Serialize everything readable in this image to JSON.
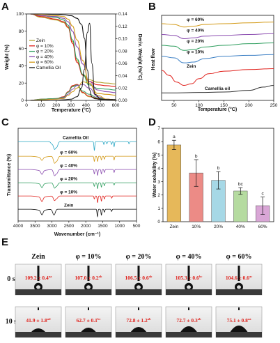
{
  "panels": {
    "A": {
      "letter": "A",
      "xlabel": "Temperature (°C)",
      "ylabel_left": "Weight (%)",
      "ylabel_right": "Deriv. Weight (%/°C)",
      "x_ticks": [
        "0",
        "100",
        "200",
        "300",
        "400",
        "500",
        "600"
      ],
      "y_left_ticks": [
        "0",
        "20",
        "40",
        "60",
        "80",
        "100"
      ],
      "y_right_ticks": [
        "0.00",
        "0.02",
        "0.04",
        "0.06",
        "0.08",
        "0.10",
        "0.12",
        "0.14"
      ],
      "legend": [
        "Zein",
        "φ = 10%",
        "φ = 20%",
        "φ = 40%",
        "φ = 60%",
        "Camellia Oil"
      ]
    },
    "B": {
      "letter": "B",
      "xlabel": "Temperature (°C)",
      "ylabel": "Heat flow",
      "x_ticks": [
        "50",
        "100",
        "150",
        "200",
        "250"
      ],
      "curve_labels": [
        "φ = 60%",
        "φ = 40%",
        "φ = 20%",
        "φ = 10%",
        "Zein",
        "Camellia oil"
      ]
    },
    "C": {
      "letter": "C",
      "xlabel": "Wavenumber (cm⁻¹)",
      "ylabel": "Transmittance (%)",
      "x_ticks": [
        "4000",
        "3500",
        "3000",
        "2500",
        "2000",
        "1500",
        "1000",
        "500"
      ],
      "curve_labels": [
        "Camellia Oil",
        "φ = 60%",
        "φ = 40%",
        "φ = 20%",
        "φ = 10%",
        "Zein"
      ]
    },
    "D": {
      "letter": "D",
      "ylabel": "Water solubility (%)",
      "y_ticks": [
        "0",
        "1",
        "2",
        "3",
        "4",
        "5",
        "6",
        "7"
      ]
    },
    "E": {
      "letter": "E",
      "headers": [
        "Zein",
        "φ = 10%",
        "φ = 20%",
        "φ = 40%",
        "φ = 60%"
      ],
      "row_labels": [
        "0 s",
        "10 s"
      ],
      "values_0s": [
        "109.2 ± 0.4",
        "107.0 ± 0.2",
        "106.5 ± 0.6",
        "105.3 ± 0.6",
        "104.6 ± 0.6"
      ],
      "sup_0s": [
        "aa",
        "ab",
        "ab",
        "bc",
        "ac"
      ],
      "values_10s": [
        "41.9 ± 1.8",
        "62.7 ± 0.1",
        "72.8 ± 1.2",
        "72.7 ± 0.3",
        "75.1 ± 0.8"
      ],
      "sup_10s": [
        "ad",
        "bc",
        "ab",
        "ab",
        "aa"
      ]
    }
  },
  "colors": {
    "zein": "#b5a532",
    "phi10": "#e0201b",
    "phi20": "#2e9e5e",
    "phi40": "#8b4db0",
    "phi60": "#d39a17",
    "oil": "#111111",
    "oilB": "#333333",
    "oilC": "#2aa7c4",
    "zeinB": "#e0201b",
    "zeinC": "#111111",
    "phi10B": "#3b7fc4",
    "phi10C": "#e0201b",
    "phi20B": "#2e9e5e",
    "phi20C": "#2e9e5e"
  },
  "chart_data": [
    {
      "panel": "A",
      "type": "line",
      "title": "",
      "xlabel": "Temperature (°C)",
      "ylabel": "Weight (%)",
      "y2label": "Deriv. Weight (%/°C)",
      "xlim": [
        0,
        600
      ],
      "ylim": [
        0,
        100
      ],
      "y2lim": [
        0,
        0.14
      ],
      "series": [
        {
          "name": "Zein",
          "color": "#b5a532",
          "x": [
            25,
            100,
            200,
            250,
            280,
            310,
            340,
            380,
            420,
            480,
            540,
            600
          ],
          "y": [
            100,
            96,
            93,
            90,
            84,
            68,
            46,
            30,
            24,
            21,
            20,
            19
          ],
          "deriv_y": [
            0.0,
            0.002,
            0.003,
            0.006,
            0.014,
            0.023,
            0.025,
            0.012,
            0.006,
            0.003,
            0.002,
            0.001
          ]
        },
        {
          "name": "φ = 10%",
          "color": "#e0201b",
          "x": [
            25,
            100,
            200,
            250,
            280,
            310,
            340,
            380,
            420,
            480,
            540,
            600
          ],
          "y": [
            100,
            97,
            94,
            91,
            85,
            66,
            44,
            29,
            22,
            18,
            17,
            16
          ],
          "deriv_y": [
            0.0,
            0.002,
            0.003,
            0.006,
            0.014,
            0.024,
            0.026,
            0.013,
            0.007,
            0.003,
            0.002,
            0.001
          ]
        },
        {
          "name": "φ = 20%",
          "color": "#2e9e5e",
          "x": [
            25,
            100,
            200,
            250,
            280,
            310,
            340,
            380,
            420,
            480,
            540,
            600
          ],
          "y": [
            100,
            98,
            96,
            93,
            87,
            70,
            48,
            30,
            18,
            14,
            13,
            12
          ],
          "deriv_y": [
            0.0,
            0.002,
            0.003,
            0.005,
            0.013,
            0.022,
            0.025,
            0.015,
            0.01,
            0.004,
            0.002,
            0.001
          ]
        },
        {
          "name": "φ = 40%",
          "color": "#8b4db0",
          "x": [
            25,
            100,
            200,
            250,
            280,
            310,
            340,
            380,
            420,
            480,
            540,
            600
          ],
          "y": [
            100,
            98,
            97,
            95,
            91,
            80,
            62,
            42,
            22,
            12,
            10,
            9
          ],
          "deriv_y": [
            0.0,
            0.001,
            0.002,
            0.004,
            0.01,
            0.018,
            0.024,
            0.026,
            0.02,
            0.006,
            0.002,
            0.001
          ]
        },
        {
          "name": "φ = 60%",
          "color": "#d39a17",
          "x": [
            25,
            100,
            200,
            250,
            280,
            310,
            340,
            380,
            420,
            480,
            540,
            600
          ],
          "y": [
            100,
            99,
            98,
            97,
            94,
            86,
            70,
            46,
            20,
            8,
            7,
            6
          ],
          "deriv_y": [
            0.0,
            0.001,
            0.002,
            0.003,
            0.008,
            0.014,
            0.02,
            0.03,
            0.028,
            0.008,
            0.002,
            0.001
          ]
        },
        {
          "name": "Camellia Oil",
          "color": "#111111",
          "x": [
            25,
            100,
            200,
            250,
            300,
            340,
            370,
            390,
            410,
            425,
            440,
            460,
            500,
            600
          ],
          "y": [
            100,
            100,
            99.5,
            99,
            98,
            95,
            88,
            72,
            35,
            12,
            4,
            2,
            1,
            1
          ],
          "deriv_y": [
            0.0,
            0.0,
            0.0,
            0.001,
            0.002,
            0.006,
            0.02,
            0.05,
            0.11,
            0.125,
            0.06,
            0.01,
            0.002,
            0.0
          ]
        }
      ]
    },
    {
      "panel": "B",
      "type": "line",
      "title": "",
      "xlabel": "Temperature (°C)",
      "ylabel": "Heat flow",
      "xlim": [
        25,
        250
      ],
      "series": [
        {
          "name": "φ = 60%",
          "color": "#d39a17",
          "x": [
            25,
            50,
            70,
            90,
            110,
            150,
            200,
            250
          ],
          "y": [
            9.2,
            9.1,
            8.8,
            8.9,
            9.1,
            9.2,
            9.3,
            9.4
          ]
        },
        {
          "name": "φ = 40%",
          "color": "#8b4db0",
          "x": [
            25,
            50,
            70,
            90,
            110,
            150,
            200,
            250
          ],
          "y": [
            7.9,
            7.8,
            7.4,
            7.5,
            7.7,
            7.8,
            7.9,
            8.0
          ]
        },
        {
          "name": "φ = 20%",
          "color": "#2e9e5e",
          "x": [
            25,
            50,
            70,
            90,
            110,
            150,
            200,
            250
          ],
          "y": [
            6.6,
            6.5,
            6.0,
            6.1,
            6.4,
            6.6,
            6.8,
            6.9
          ]
        },
        {
          "name": "φ = 10%",
          "color": "#3b7fc4",
          "x": [
            25,
            50,
            70,
            90,
            110,
            150,
            200,
            250
          ],
          "y": [
            5.3,
            5.1,
            4.5,
            4.6,
            5.0,
            5.3,
            5.4,
            5.5
          ]
        },
        {
          "name": "Zein",
          "color": "#e0201b",
          "x": [
            25,
            40,
            55,
            70,
            85,
            100,
            120,
            150,
            200,
            250
          ],
          "y": [
            3.6,
            3.0,
            2.2,
            1.8,
            2.0,
            2.6,
            3.2,
            3.5,
            3.7,
            3.8
          ]
        },
        {
          "name": "Camellia oil",
          "color": "#333333",
          "x": [
            25,
            50,
            100,
            150,
            200,
            230,
            250
          ],
          "y": [
            0.9,
            0.9,
            0.95,
            1.0,
            1.2,
            1.6,
            1.8
          ]
        }
      ]
    },
    {
      "panel": "C",
      "type": "line",
      "title": "",
      "xlabel": "Wavenumber (cm⁻¹)",
      "ylabel": "Transmittance (%)",
      "xlim": [
        4000,
        500
      ],
      "series": [
        {
          "name": "Camellia Oil",
          "color": "#2aa7c4",
          "base": 5.4,
          "dips": [
            [
              3005,
              0.15
            ],
            [
              2925,
              0.5
            ],
            [
              2854,
              0.35
            ],
            [
              1746,
              0.6
            ],
            [
              1465,
              0.2
            ],
            [
              1377,
              0.15
            ],
            [
              1237,
              0.2
            ],
            [
              1163,
              0.35
            ],
            [
              722,
              0.15
            ]
          ]
        },
        {
          "name": "φ = 60%",
          "color": "#d39a17",
          "base": 4.4,
          "dips": [
            [
              3295,
              0.2
            ],
            [
              2925,
              0.45
            ],
            [
              2854,
              0.3
            ],
            [
              1746,
              0.35
            ],
            [
              1651,
              0.35
            ],
            [
              1538,
              0.25
            ],
            [
              1449,
              0.2
            ],
            [
              1163,
              0.25
            ]
          ]
        },
        {
          "name": "φ = 40%",
          "color": "#8b4db0",
          "base": 3.5,
          "dips": [
            [
              3295,
              0.25
            ],
            [
              2925,
              0.4
            ],
            [
              2854,
              0.25
            ],
            [
              1746,
              0.3
            ],
            [
              1651,
              0.4
            ],
            [
              1538,
              0.3
            ],
            [
              1449,
              0.2
            ],
            [
              1163,
              0.2
            ]
          ]
        },
        {
          "name": "φ = 20%",
          "color": "#2e9e5e",
          "base": 2.6,
          "dips": [
            [
              3295,
              0.25
            ],
            [
              2925,
              0.35
            ],
            [
              2854,
              0.2
            ],
            [
              1747,
              0.25
            ],
            [
              1651,
              0.4
            ],
            [
              1538,
              0.3
            ],
            [
              1449,
              0.2
            ],
            [
              1163,
              0.15
            ]
          ]
        },
        {
          "name": "φ = 10%",
          "color": "#e0201b",
          "base": 1.7,
          "dips": [
            [
              3295,
              0.3
            ],
            [
              2925,
              0.3
            ],
            [
              2854,
              0.15
            ],
            [
              1746,
              0.2
            ],
            [
              1651,
              0.45
            ],
            [
              1538,
              0.35
            ],
            [
              1449,
              0.2
            ],
            [
              1233,
              0.15
            ]
          ]
        },
        {
          "name": "Zein",
          "color": "#111111",
          "base": 0.8,
          "dips": [
            [
              3295,
              0.3
            ],
            [
              2959,
              0.2
            ],
            [
              2925,
              0.25
            ],
            [
              1655,
              0.5
            ],
            [
              1538,
              0.4
            ],
            [
              1449,
              0.2
            ],
            [
              1237,
              0.15
            ]
          ]
        }
      ]
    },
    {
      "panel": "D",
      "type": "bar",
      "title": "",
      "xlabel": "",
      "ylabel": "Water solubility (%)",
      "ylim": [
        0,
        7
      ],
      "categories": [
        "Zein",
        "10%",
        "20%",
        "40%",
        "60%"
      ],
      "values": [
        5.75,
        3.65,
        3.1,
        2.3,
        1.2
      ],
      "errors": [
        0.35,
        1.0,
        0.65,
        0.25,
        0.65
      ],
      "significance": [
        "a",
        "b",
        "b",
        "bc",
        "c"
      ],
      "colors": [
        "#e6b85a",
        "#ec8b86",
        "#a6d8e6",
        "#b5dba0",
        "#d9a6d6"
      ]
    }
  ]
}
